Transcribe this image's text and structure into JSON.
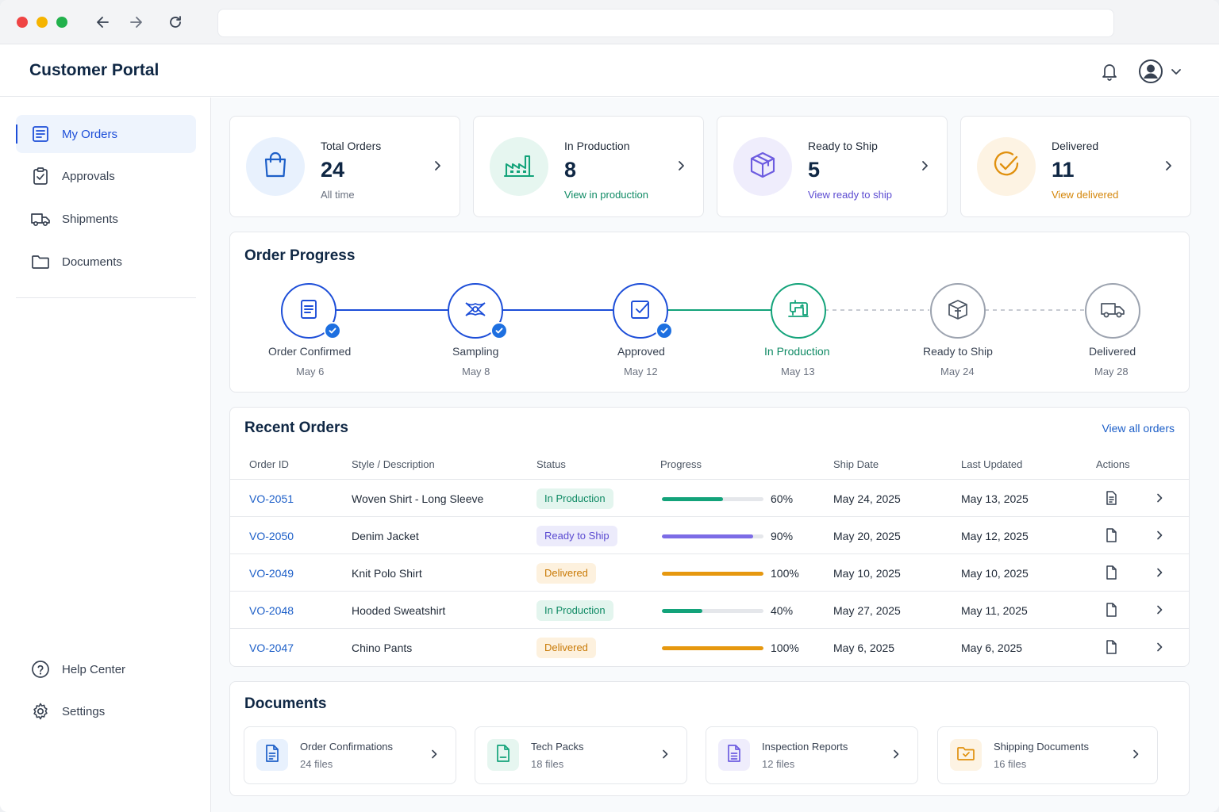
{
  "app": {
    "title": "Customer Portal"
  },
  "sidebar": {
    "items": [
      {
        "label": "My Orders",
        "icon": "orders-list-icon",
        "active": true
      },
      {
        "label": "Approvals",
        "icon": "clipboard-check-icon"
      },
      {
        "label": "Shipments",
        "icon": "truck-icon"
      },
      {
        "label": "Documents",
        "icon": "folder-icon"
      }
    ],
    "footer": [
      {
        "label": "Help Center",
        "icon": "help-circle-icon"
      },
      {
        "label": "Settings",
        "icon": "gear-icon"
      }
    ]
  },
  "stats": [
    {
      "label": "Total Orders",
      "value": "24",
      "sub": "All time",
      "icon": "shopping-bag-icon",
      "color": "#1d5fc8",
      "bg": "#e8f1fd",
      "subColor": "#6b7280"
    },
    {
      "label": "In Production",
      "value": "8",
      "sub": "View in production",
      "icon": "factory-icon",
      "color": "#13a37a",
      "bg": "#e6f6f0",
      "subColor": "#0f8a64"
    },
    {
      "label": "Ready to Ship",
      "value": "5",
      "sub": "View ready to ship",
      "icon": "box-icon",
      "color": "#6d5ce0",
      "bg": "#efedfc",
      "subColor": "#5b4bd1"
    },
    {
      "label": "Delivered",
      "value": "11",
      "sub": "View delivered",
      "icon": "check-circle-icon",
      "color": "#e0900d",
      "bg": "#fdf3e3",
      "subColor": "#d4860a"
    }
  ],
  "progress": {
    "title": "Order Progress",
    "steps": [
      {
        "name": "Order Confirmed",
        "date": "May 6",
        "state": "done",
        "icon": "document-icon"
      },
      {
        "name": "Sampling",
        "date": "May 8",
        "state": "done",
        "icon": "fabric-icon"
      },
      {
        "name": "Approved",
        "date": "May 12",
        "state": "done",
        "icon": "checkbox-icon"
      },
      {
        "name": "In Production",
        "date": "May 13",
        "state": "current",
        "icon": "sewing-machine-icon"
      },
      {
        "name": "Ready to Ship",
        "date": "May 24",
        "state": "pending",
        "icon": "box-icon"
      },
      {
        "name": "Delivered",
        "date": "May 28",
        "state": "pending",
        "icon": "truck-icon"
      }
    ]
  },
  "orders": {
    "title": "Recent Orders",
    "view_all": "View all orders",
    "columns": [
      "Order ID",
      "Style / Description",
      "Status",
      "Progress",
      "Ship Date",
      "Last Updated",
      "Actions"
    ],
    "rows": [
      {
        "id": "VO-2051",
        "style": "Woven Shirt - Long Sleeve",
        "status": "In Production",
        "progress": 60,
        "progress_label": "60%",
        "ship": "May 24, 2025",
        "updated": "May 13, 2025"
      },
      {
        "id": "VO-2050",
        "style": "Denim Jacket",
        "status": "Ready to Ship",
        "progress": 90,
        "progress_label": "90%",
        "ship": "May 20, 2025",
        "updated": "May 12, 2025"
      },
      {
        "id": "VO-2049",
        "style": "Knit Polo Shirt",
        "status": "Delivered",
        "progress": 100,
        "progress_label": "100%",
        "ship": "May 10, 2025",
        "updated": "May 10, 2025"
      },
      {
        "id": "VO-2048",
        "style": "Hooded Sweatshirt",
        "status": "In Production",
        "progress": 40,
        "progress_label": "40%",
        "ship": "May 27, 2025",
        "updated": "May 11, 2025"
      },
      {
        "id": "VO-2047",
        "style": "Chino Pants",
        "status": "Delivered",
        "progress": 100,
        "progress_label": "100%",
        "ship": "May 6, 2025",
        "updated": "May 6, 2025"
      }
    ],
    "status_colors": {
      "In Production": {
        "fg": "#0f8a64",
        "bg": "#e3f5ee",
        "bar": "#13a37a"
      },
      "Ready to Ship": {
        "fg": "#5b4bd1",
        "bg": "#ecebfb",
        "bar": "#7c6ce6"
      },
      "Delivered": {
        "fg": "#c97a06",
        "bg": "#fdf1de",
        "bar": "#e6980f"
      }
    }
  },
  "documents": {
    "title": "Documents",
    "items": [
      {
        "name": "Order Confirmations",
        "count": "24 files",
        "icon": "document-icon",
        "color": "#1d5fc8",
        "bg": "#e8f1fd"
      },
      {
        "name": "Tech Packs",
        "count": "18 files",
        "icon": "spreadsheet-icon",
        "color": "#13a37a",
        "bg": "#e6f6f0"
      },
      {
        "name": "Inspection Reports",
        "count": "12 files",
        "icon": "report-icon",
        "color": "#6d5ce0",
        "bg": "#efedfc"
      },
      {
        "name": "Shipping Documents",
        "count": "16 files",
        "icon": "folder-icon",
        "color": "#e0900d",
        "bg": "#fdf3e3"
      }
    ]
  }
}
